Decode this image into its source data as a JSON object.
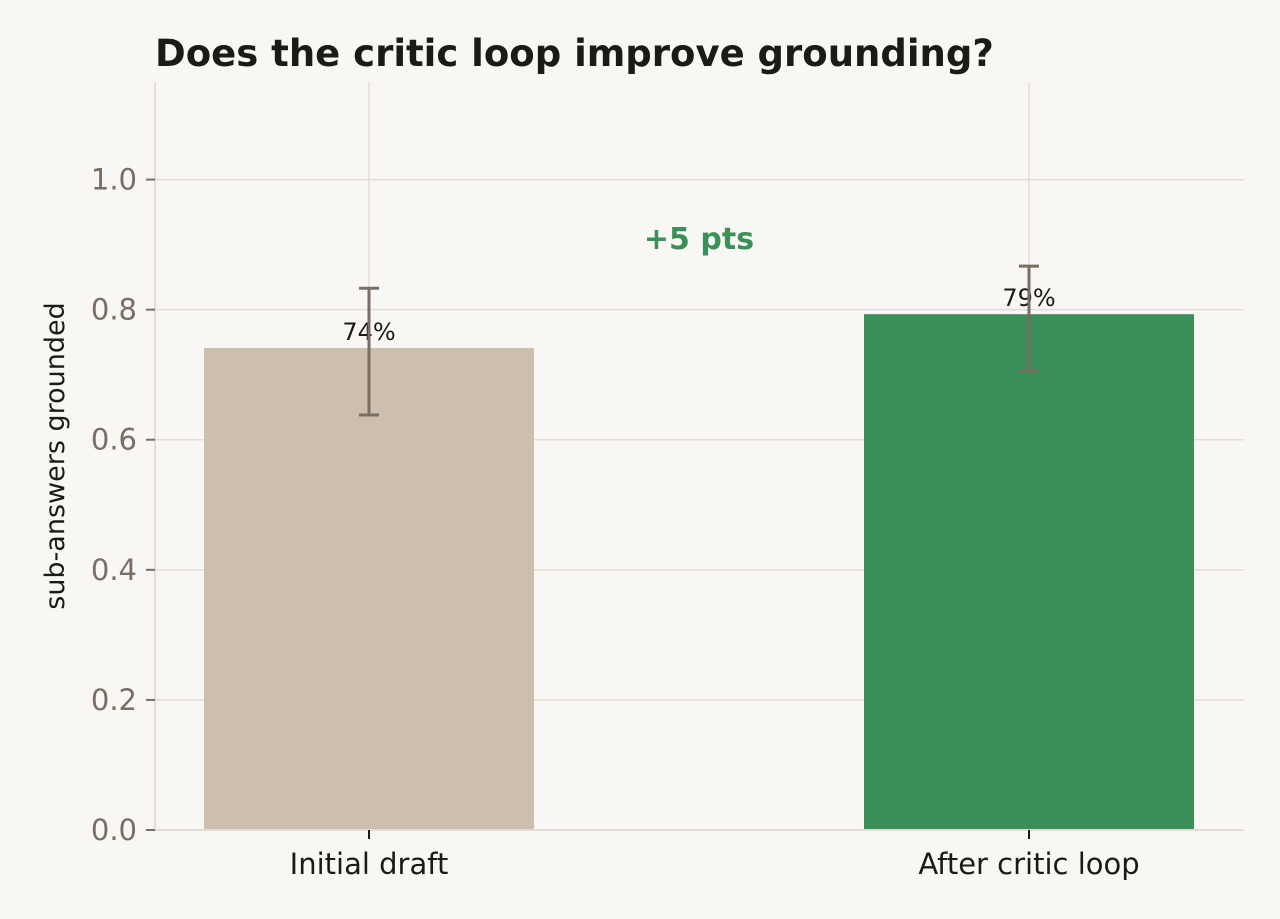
{
  "chart_data": {
    "type": "bar",
    "title": "Does the critic loop improve grounding?",
    "xlabel": "",
    "ylabel": "sub-answers grounded",
    "categories": [
      "Initial draft",
      "After critic loop"
    ],
    "values": [
      0.741,
      0.793
    ],
    "error_low": [
      0.638,
      0.706
    ],
    "error_high": [
      0.833,
      0.867
    ],
    "value_labels": [
      "74%",
      "79%"
    ],
    "ylim": [
      0,
      1.15
    ],
    "yticks": [
      0.0,
      0.2,
      0.4,
      0.6,
      0.8,
      1.0
    ],
    "ytick_labels": [
      "0.0",
      "0.2",
      "0.4",
      "0.6",
      "0.8",
      "1.0"
    ],
    "grid": "both",
    "annotation": "+5 pts",
    "colors": {
      "bars": [
        "#cdbfad",
        "#3b8f59"
      ],
      "annotation": "#3b8f59",
      "error_bar": "#7a6e64",
      "grid": "#e3ddd3",
      "axis": "#e3ddd3",
      "background": "#f8f7f4"
    }
  }
}
